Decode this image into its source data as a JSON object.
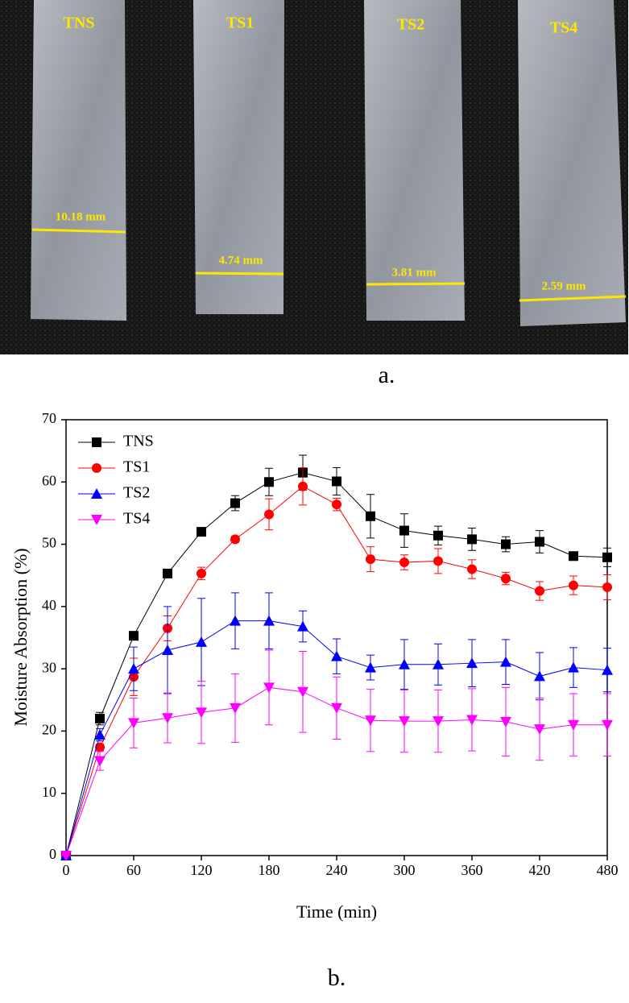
{
  "panel_a": {
    "caption": "a.",
    "strips": [
      {
        "label": "TNS",
        "width_label": "10.18 mm"
      },
      {
        "label": "TS1",
        "width_label": "4.74 mm"
      },
      {
        "label": "TS2",
        "width_label": "3.81 mm"
      },
      {
        "label": "TS4",
        "width_label": "2.59 mm"
      }
    ]
  },
  "chart_data": {
    "type": "line",
    "caption": "b.",
    "x_label": "Time (min)",
    "y_label": "Moisture Absorption (%)",
    "x": [
      0,
      30,
      60,
      90,
      120,
      150,
      180,
      210,
      240,
      270,
      300,
      330,
      360,
      390,
      420,
      450,
      480
    ],
    "xlim": [
      0,
      480
    ],
    "xticks": [
      0,
      60,
      120,
      180,
      240,
      300,
      360,
      420,
      480
    ],
    "ylim": [
      0,
      70
    ],
    "yticks": [
      0,
      10,
      20,
      30,
      40,
      50,
      60,
      70
    ],
    "legend": "upper-left",
    "series": [
      {
        "name": "TNS",
        "color": "#000000",
        "marker": "square",
        "values": [
          0,
          22,
          35.3,
          45.3,
          52,
          56.6,
          60,
          61.5,
          60.1,
          54.5,
          52.2,
          51.4,
          50.8,
          50,
          50.4,
          48.1,
          47.9
        ],
        "errors": [
          0,
          1,
          0.5,
          0.5,
          0.5,
          1.2,
          2.2,
          2.8,
          2.2,
          3.5,
          2.7,
          1.5,
          1.8,
          1.2,
          1.8,
          0.5,
          1.5
        ]
      },
      {
        "name": "TS1",
        "color": "#ff0000",
        "marker": "circle",
        "values": [
          0,
          17.4,
          28.7,
          36.5,
          45.3,
          50.8,
          54.8,
          59.3,
          56.4,
          47.6,
          47.1,
          47.3,
          46,
          44.5,
          42.5,
          43.4,
          43.1
        ],
        "errors": [
          0,
          0.5,
          3,
          2,
          1,
          0.5,
          2.5,
          3,
          1,
          2,
          1.2,
          2,
          1.5,
          1,
          1.5,
          1.5,
          2
        ]
      },
      {
        "name": "TS2",
        "color": "#0000ff",
        "marker": "triangle-up",
        "values": [
          0,
          19.4,
          30,
          33,
          34.3,
          37.7,
          37.7,
          36.8,
          32,
          30.2,
          30.7,
          30.7,
          30.9,
          31.1,
          28.8,
          30.2,
          29.8
        ],
        "errors": [
          0,
          1,
          3.5,
          7,
          7,
          4.5,
          4.5,
          2.5,
          2.8,
          2,
          4,
          3.3,
          3.8,
          3.6,
          3.8,
          3.2,
          3.5
        ]
      },
      {
        "name": "TS4",
        "color": "#ff00ff",
        "marker": "triangle-down",
        "values": [
          0,
          15.2,
          21.3,
          22.1,
          23,
          23.7,
          27,
          26.3,
          23.7,
          21.7,
          21.6,
          21.6,
          21.8,
          21.5,
          20.3,
          21,
          21
        ],
        "errors": [
          0,
          1.5,
          4,
          4,
          5,
          5.5,
          6,
          6.5,
          5,
          5,
          5,
          5,
          5,
          5.5,
          5,
          5,
          5
        ]
      }
    ]
  }
}
